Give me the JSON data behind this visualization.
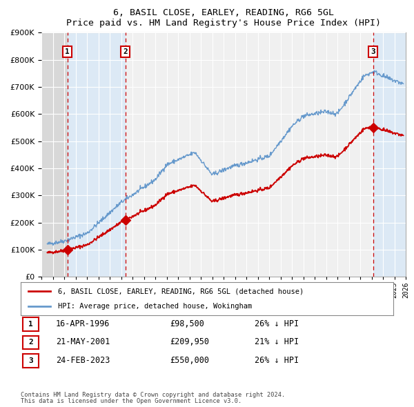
{
  "title": "6, BASIL CLOSE, EARLEY, READING, RG6 5GL",
  "subtitle": "Price paid vs. HM Land Registry's House Price Index (HPI)",
  "sale_dates_dec": [
    1996.29,
    2001.39,
    2023.15
  ],
  "sale_prices": [
    98500,
    209950,
    550000
  ],
  "sale_labels": [
    "1",
    "2",
    "3"
  ],
  "hpi_label": "HPI: Average price, detached house, Wokingham",
  "price_label": "6, BASIL CLOSE, EARLEY, READING, RG6 5GL (detached house)",
  "price_color": "#cc0000",
  "hpi_color": "#6699cc",
  "shaded_region1_start": 1996.29,
  "shaded_region1_end": 2001.39,
  "shaded_region2_start": 2023.15,
  "shaded_region2_end": 2026.0,
  "xmin": 1994.0,
  "xmax": 2026.0,
  "ymin": 0,
  "ymax": 900000,
  "yticks": [
    0,
    100000,
    200000,
    300000,
    400000,
    500000,
    600000,
    700000,
    800000,
    900000
  ],
  "ytick_labels": [
    "£0",
    "£100K",
    "£200K",
    "£300K",
    "£400K",
    "£500K",
    "£600K",
    "£700K",
    "£800K",
    "£900K"
  ],
  "table_rows": [
    {
      "num": "1",
      "date": "16-APR-1996",
      "price": "£98,500",
      "hpi": "26% ↓ HPI"
    },
    {
      "num": "2",
      "date": "21-MAY-2001",
      "price": "£209,950",
      "hpi": "21% ↓ HPI"
    },
    {
      "num": "3",
      "date": "24-FEB-2023",
      "price": "£550,000",
      "hpi": "26% ↓ HPI"
    }
  ],
  "footnote1": "Contains HM Land Registry data © Crown copyright and database right 2024.",
  "footnote2": "This data is licensed under the Open Government Licence v3.0.",
  "background_color": "#ffffff",
  "plot_bg_color": "#f0f0f0",
  "shaded_bg_color": "#dce9f5",
  "gray_region_color": "#d8d8d8"
}
